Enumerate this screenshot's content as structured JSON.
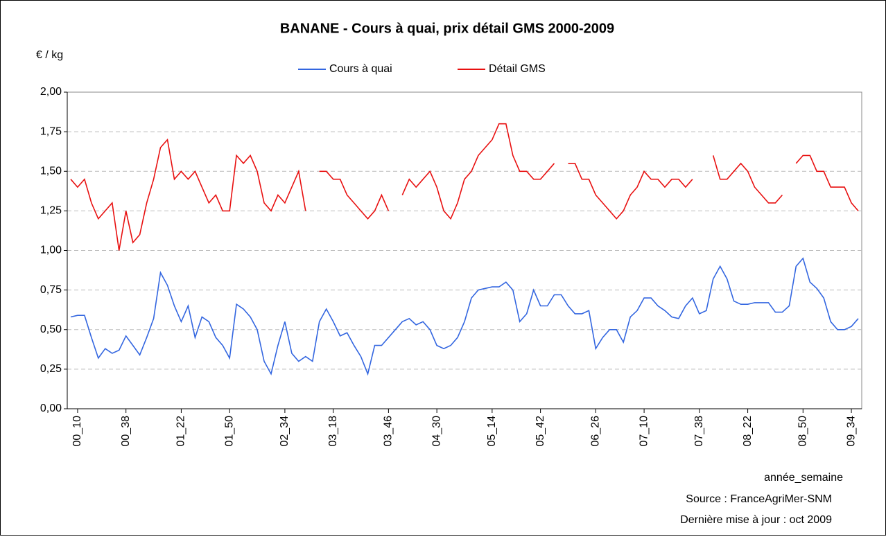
{
  "chart_data": {
    "type": "line",
    "title": "BANANE - Cours à quai, prix détail GMS  2000-2009",
    "y_label": "€ / kg",
    "x_label": "année_semaine",
    "source": "Source : FranceAgriMer-SNM",
    "update": "Dernière mise à jour : oct 2009",
    "legend": "top",
    "grid": true,
    "ylim": [
      0,
      2
    ],
    "yticks": [
      {
        "value": 0,
        "label": "0,00"
      },
      {
        "value": 0.25,
        "label": "0,25"
      },
      {
        "value": 0.5,
        "label": "0,50"
      },
      {
        "value": 0.75,
        "label": "0,75"
      },
      {
        "value": 1,
        "label": "1,00"
      },
      {
        "value": 1.25,
        "label": "1,25"
      },
      {
        "value": 1.5,
        "label": "1,50"
      },
      {
        "value": 1.75,
        "label": "1,75"
      },
      {
        "value": 2,
        "label": "2,00"
      }
    ],
    "categories": [
      null,
      "00_10",
      null,
      null,
      null,
      null,
      null,
      null,
      "00_38",
      null,
      null,
      null,
      null,
      null,
      null,
      null,
      "01_22",
      null,
      null,
      null,
      null,
      null,
      null,
      "01_50",
      null,
      null,
      null,
      null,
      null,
      null,
      null,
      "02_34",
      null,
      null,
      null,
      null,
      null,
      null,
      "03_18",
      null,
      null,
      null,
      null,
      null,
      null,
      null,
      "03_46",
      null,
      null,
      null,
      null,
      null,
      null,
      "04_30",
      null,
      null,
      null,
      null,
      null,
      null,
      null,
      "05_14",
      null,
      null,
      null,
      null,
      null,
      null,
      "05_42",
      null,
      null,
      null,
      null,
      null,
      null,
      null,
      "06_26",
      null,
      null,
      null,
      null,
      null,
      null,
      "07_10",
      null,
      null,
      null,
      null,
      null,
      null,
      null,
      "07_38",
      null,
      null,
      null,
      null,
      null,
      null,
      "08_22",
      null,
      null,
      null,
      null,
      null,
      null,
      null,
      "08_50",
      null,
      null,
      null,
      null,
      null,
      null,
      "09_34",
      null
    ],
    "series": [
      {
        "name": "Cours à quai",
        "color": "#3366e0",
        "values": [
          0.58,
          0.59,
          0.59,
          0.45,
          0.32,
          0.38,
          0.35,
          0.37,
          0.46,
          0.4,
          0.34,
          0.45,
          0.57,
          0.86,
          0.78,
          0.65,
          0.55,
          0.65,
          0.45,
          0.58,
          0.55,
          0.45,
          0.4,
          0.32,
          0.66,
          0.63,
          0.58,
          0.5,
          0.3,
          0.22,
          0.4,
          0.55,
          0.35,
          0.3,
          0.33,
          0.3,
          0.55,
          0.63,
          0.55,
          0.46,
          0.48,
          0.4,
          0.33,
          0.22,
          0.4,
          0.4,
          0.45,
          0.5,
          0.55,
          0.57,
          0.53,
          0.55,
          0.5,
          0.4,
          0.38,
          0.4,
          0.45,
          0.55,
          0.7,
          0.75,
          0.76,
          0.77,
          0.77,
          0.8,
          0.75,
          0.55,
          0.6,
          0.75,
          0.65,
          0.65,
          0.72,
          0.72,
          0.65,
          0.6,
          0.6,
          0.62,
          0.38,
          0.45,
          0.5,
          0.5,
          0.42,
          0.58,
          0.62,
          0.7,
          0.7,
          0.65,
          0.62,
          0.58,
          0.57,
          0.65,
          0.7,
          0.6,
          0.62,
          0.82,
          0.9,
          0.82,
          0.68,
          0.66,
          0.66,
          0.67,
          0.67,
          0.67,
          0.61,
          0.61,
          0.65,
          0.9,
          0.95,
          0.8,
          0.76,
          0.7,
          0.55,
          0.5,
          0.5,
          0.52,
          0.57
        ]
      },
      {
        "name": "Détail GMS",
        "color": "#e81010",
        "values": [
          1.45,
          1.4,
          1.45,
          1.3,
          1.2,
          1.25,
          1.3,
          1.0,
          1.25,
          1.05,
          1.1,
          1.3,
          1.45,
          1.65,
          1.7,
          1.45,
          1.5,
          1.45,
          1.5,
          1.4,
          1.3,
          1.35,
          1.25,
          1.25,
          1.6,
          1.55,
          1.6,
          1.5,
          1.3,
          1.25,
          1.35,
          1.3,
          1.4,
          1.5,
          1.25,
          null,
          1.5,
          1.5,
          1.45,
          1.45,
          1.35,
          1.3,
          1.25,
          1.2,
          1.25,
          1.35,
          1.25,
          null,
          1.35,
          1.45,
          1.4,
          1.45,
          1.5,
          1.4,
          1.25,
          1.2,
          1.3,
          1.45,
          1.5,
          1.6,
          1.65,
          1.7,
          1.8,
          1.8,
          1.6,
          1.5,
          1.5,
          1.45,
          1.45,
          1.5,
          1.55,
          null,
          1.55,
          1.55,
          1.45,
          1.45,
          1.35,
          1.3,
          1.25,
          1.2,
          1.25,
          1.35,
          1.4,
          1.5,
          1.45,
          1.45,
          1.4,
          1.45,
          1.45,
          1.4,
          1.45,
          null,
          null,
          1.6,
          1.45,
          1.45,
          1.5,
          1.55,
          1.5,
          1.4,
          1.35,
          1.3,
          1.3,
          1.35,
          null,
          1.55,
          1.6,
          1.6,
          1.5,
          1.5,
          1.4,
          1.4,
          1.4,
          1.3,
          1.25
        ]
      }
    ]
  }
}
